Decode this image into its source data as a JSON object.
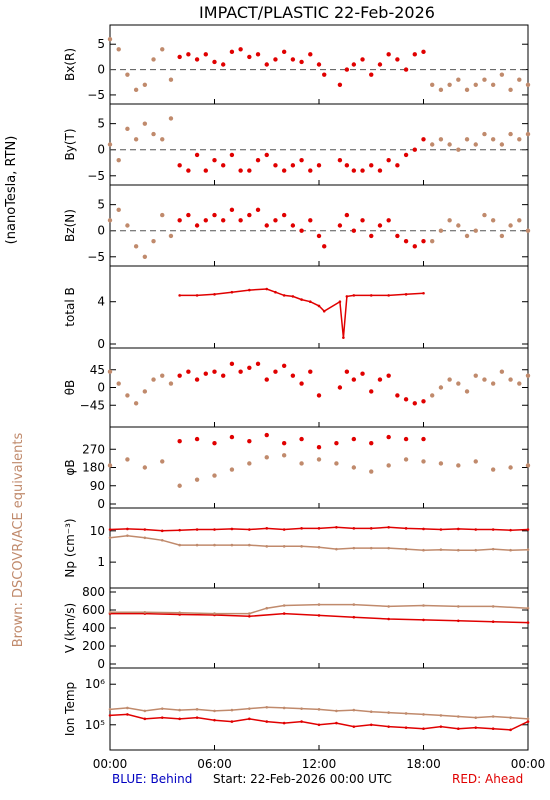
{
  "title": "IMPACT/PLASTIC   22-Feb-2026",
  "left_units_label": "(nanoTesla, RTN)",
  "left_brown_label": "Brown: DSCOVR/ACE equivalents",
  "footer": {
    "blue": "BLUE: Behind",
    "start": "Start: 22-Feb-2026 00:00 UTC",
    "red": "RED: Ahead"
  },
  "colors": {
    "red": "#e00000",
    "brown": "#c08a6c",
    "blue": "#0000c0",
    "dashed": "#555555"
  },
  "chart_data": [
    {
      "type": "scatter",
      "id": "bx",
      "ylabel": "Bx(R)",
      "ylim": [
        -6,
        8
      ],
      "ytick_labels": [
        "−5",
        "0",
        "5"
      ],
      "ytick_values": [
        -5,
        0,
        5
      ],
      "zero_line": true,
      "series": [
        {
          "color_key": "red",
          "x": [
            4,
            4.5,
            5,
            5.5,
            6,
            6.5,
            7,
            7.5,
            8,
            8.5,
            9,
            9.5,
            10,
            10.5,
            11,
            11.5,
            12,
            12.3,
            13.2,
            13.6,
            14,
            14.5,
            15,
            15.5,
            16,
            16.5,
            17,
            17.5,
            18
          ],
          "y": [
            2.5,
            3,
            2,
            3,
            1.5,
            1,
            3.5,
            4,
            2.5,
            3,
            1,
            2,
            3.5,
            2,
            1.5,
            3,
            1,
            -1,
            -3,
            0,
            1,
            2,
            -1,
            1,
            3,
            2,
            0,
            3,
            3.5
          ]
        },
        {
          "color_key": "brown",
          "x": [
            0,
            0.5,
            1,
            1.5,
            2,
            2.5,
            3,
            3.5,
            18.5,
            19,
            19.5,
            20,
            20.5,
            21,
            21.5,
            22,
            22.5,
            23,
            23.5,
            24
          ],
          "y": [
            6,
            4,
            -1,
            -4,
            -3,
            2,
            4,
            -2,
            -3,
            -4,
            -3,
            -2,
            -4,
            -3,
            -2,
            -3,
            -1,
            -4,
            -2,
            -3
          ]
        }
      ]
    },
    {
      "type": "scatter",
      "id": "by",
      "ylabel": "By(T)",
      "ylim": [
        -6,
        8
      ],
      "ytick_labels": [
        "−5",
        "0",
        "5"
      ],
      "ytick_values": [
        -5,
        0,
        5
      ],
      "zero_line": true,
      "series": [
        {
          "color_key": "red",
          "x": [
            4,
            4.5,
            5,
            5.5,
            6,
            6.5,
            7,
            7.5,
            8,
            8.5,
            9,
            9.5,
            10,
            10.5,
            11,
            11.5,
            12,
            13.2,
            13.6,
            14,
            14.5,
            15,
            15.5,
            16,
            16.5,
            17,
            17.5,
            18
          ],
          "y": [
            -3,
            -4,
            -1,
            -4,
            -2,
            -3,
            -1,
            -4,
            -4,
            -2,
            -1,
            -3,
            -4,
            -3,
            -2,
            -4,
            -3,
            -2,
            -3,
            -4,
            -4,
            -3,
            -4,
            -2,
            -3,
            -1,
            0,
            2
          ]
        },
        {
          "color_key": "brown",
          "x": [
            0,
            0.5,
            1,
            1.5,
            2,
            2.5,
            3,
            3.5,
            18.5,
            19,
            19.5,
            20,
            20.5,
            21,
            21.5,
            22,
            22.5,
            23,
            23.5,
            24
          ],
          "y": [
            1,
            -2,
            4,
            2,
            5,
            3,
            2,
            6,
            1,
            2,
            1,
            0,
            2,
            1,
            3,
            2,
            1,
            3,
            2,
            3
          ]
        }
      ]
    },
    {
      "type": "scatter",
      "id": "bz",
      "ylabel": "Bz(N)",
      "ylim": [
        -6,
        8
      ],
      "ytick_labels": [
        "−5",
        "0",
        "5"
      ],
      "ytick_values": [
        -5,
        0,
        5
      ],
      "zero_line": true,
      "series": [
        {
          "color_key": "red",
          "x": [
            4,
            4.5,
            5,
            5.5,
            6,
            6.5,
            7,
            7.5,
            8,
            8.5,
            9,
            9.5,
            10,
            10.5,
            11,
            11.5,
            12,
            12.3,
            13.2,
            13.6,
            14,
            14.5,
            15,
            15.5,
            16,
            16.5,
            17,
            17.5,
            18
          ],
          "y": [
            2,
            3,
            1,
            2,
            3,
            2,
            4,
            2,
            3,
            4,
            1,
            2,
            3,
            1,
            0,
            2,
            -1,
            -3,
            1,
            3,
            0,
            2,
            -1,
            1,
            2,
            -1,
            -2,
            -3,
            -2
          ]
        },
        {
          "color_key": "brown",
          "x": [
            0,
            0.5,
            1,
            1.5,
            2,
            2.5,
            3,
            3.5,
            18.5,
            19,
            19.5,
            20,
            20.5,
            21,
            21.5,
            22,
            22.5,
            23,
            23.5,
            24
          ],
          "y": [
            2,
            4,
            1,
            -3,
            -5,
            -2,
            3,
            -1,
            -2,
            0,
            2,
            1,
            -1,
            0,
            3,
            2,
            -1,
            1,
            2,
            0
          ]
        }
      ]
    },
    {
      "type": "line",
      "id": "btot",
      "ylabel": "total B",
      "ylim": [
        0,
        7
      ],
      "ytick_labels": [
        "0",
        "4"
      ],
      "ytick_values": [
        0,
        4
      ],
      "zero_line": false,
      "series": [
        {
          "color_key": "red",
          "x": [
            4,
            5,
            6,
            7,
            8,
            9,
            9.5,
            10,
            10.5,
            11,
            11.5,
            12,
            12.3,
            13.2,
            13.4,
            13.6,
            14,
            15,
            16,
            17,
            18
          ],
          "y": [
            4.6,
            4.6,
            4.7,
            4.9,
            5.1,
            5.2,
            4.9,
            4.6,
            4.5,
            4.2,
            4.0,
            3.6,
            3.1,
            4.0,
            0.6,
            4.5,
            4.6,
            4.6,
            4.6,
            4.7,
            4.8
          ]
        }
      ]
    },
    {
      "type": "scatter",
      "id": "theta",
      "ylabel": "θB",
      "ylim": [
        -90,
        90
      ],
      "ytick_labels": [
        "−45",
        "0",
        "45"
      ],
      "ytick_values": [
        -45,
        0,
        45
      ],
      "zero_line": false,
      "series": [
        {
          "color_key": "red",
          "x": [
            4,
            4.5,
            5,
            5.5,
            6,
            6.5,
            7,
            7.5,
            8,
            8.5,
            9,
            9.5,
            10,
            10.5,
            11,
            11.5,
            12,
            13.2,
            13.6,
            14,
            14.5,
            15,
            15.5,
            16,
            16.5,
            17,
            17.5,
            18
          ],
          "y": [
            30,
            40,
            20,
            35,
            40,
            30,
            60,
            40,
            50,
            60,
            20,
            40,
            55,
            30,
            10,
            40,
            -20,
            0,
            40,
            20,
            35,
            -10,
            20,
            30,
            -20,
            -30,
            -40,
            -35
          ]
        },
        {
          "color_key": "brown",
          "x": [
            0,
            0.5,
            1,
            1.5,
            2,
            2.5,
            3,
            3.5,
            18.5,
            19,
            19.5,
            20,
            20.5,
            21,
            21.5,
            22,
            22.5,
            23,
            23.5,
            24
          ],
          "y": [
            40,
            10,
            -20,
            -40,
            -10,
            20,
            30,
            10,
            -20,
            0,
            20,
            10,
            -10,
            30,
            20,
            10,
            40,
            20,
            10,
            30
          ]
        }
      ]
    },
    {
      "type": "scatter",
      "id": "phi",
      "ylabel": "φB",
      "ylim": [
        0,
        360
      ],
      "ytick_labels": [
        "0",
        "90",
        "180",
        "270"
      ],
      "ytick_values": [
        0,
        90,
        180,
        270
      ],
      "zero_line": false,
      "series": [
        {
          "color_key": "red",
          "x": [
            4,
            5,
            6,
            7,
            8,
            9,
            10,
            11,
            12,
            13,
            14,
            15,
            16,
            17,
            18
          ],
          "y": [
            310,
            320,
            300,
            330,
            310,
            340,
            300,
            320,
            280,
            300,
            320,
            300,
            330,
            320,
            320
          ]
        },
        {
          "color_key": "brown",
          "x": [
            0,
            1,
            2,
            3,
            4,
            5,
            6,
            7,
            8,
            9,
            10,
            11,
            12,
            13,
            14,
            15,
            16,
            17,
            18,
            19,
            20,
            21,
            22,
            23,
            24
          ],
          "y": [
            190,
            220,
            180,
            210,
            90,
            120,
            140,
            170,
            200,
            230,
            240,
            200,
            220,
            200,
            180,
            160,
            190,
            220,
            210,
            200,
            190,
            210,
            170,
            180,
            190
          ]
        }
      ]
    },
    {
      "type": "line",
      "id": "np",
      "ylabel": "Np (cm⁻³)",
      "yscale": "log",
      "ylim": [
        0.2,
        40
      ],
      "ytick_labels": [
        "1",
        "10"
      ],
      "ytick_values": [
        1,
        10
      ],
      "zero_line": false,
      "series": [
        {
          "color_key": "red",
          "x": [
            0,
            1,
            2,
            3,
            4,
            5,
            6,
            7,
            8,
            9,
            10,
            11,
            12,
            13,
            14,
            15,
            16,
            17,
            18,
            19,
            20,
            21,
            22,
            23,
            24
          ],
          "y": [
            11,
            11.5,
            11,
            10,
            10.5,
            11,
            11,
            11.5,
            11,
            12,
            11,
            12,
            12,
            13,
            12,
            12,
            13,
            12,
            11.5,
            11,
            11.5,
            11,
            11,
            10.5,
            11
          ]
        },
        {
          "color_key": "brown",
          "x": [
            0,
            1,
            2,
            3,
            4,
            5,
            6,
            7,
            8,
            9,
            10,
            11,
            12,
            13,
            14,
            15,
            16,
            17,
            18,
            19,
            20,
            21,
            22,
            23,
            24
          ],
          "y": [
            6,
            7,
            6,
            5,
            3.5,
            3.5,
            3.5,
            3.5,
            3.5,
            3.2,
            3.2,
            3.2,
            3,
            2.6,
            2.8,
            2.8,
            2.8,
            2.6,
            2.4,
            2.5,
            2.4,
            2.4,
            2.6,
            2.4,
            2.5
          ]
        }
      ]
    },
    {
      "type": "line",
      "id": "v",
      "ylabel": "V (km/s)",
      "ylim": [
        0,
        800
      ],
      "ytick_labels": [
        "0",
        "200",
        "400",
        "600",
        "800"
      ],
      "ytick_values": [
        0,
        200,
        400,
        600,
        800
      ],
      "zero_line": false,
      "series": [
        {
          "color_key": "red",
          "x": [
            0,
            2,
            4,
            6,
            8,
            10,
            12,
            14,
            16,
            18,
            20,
            22,
            24
          ],
          "y": [
            560,
            560,
            550,
            545,
            530,
            560,
            540,
            520,
            500,
            490,
            480,
            470,
            460
          ]
        },
        {
          "color_key": "brown",
          "x": [
            0,
            2,
            4,
            6,
            8,
            9,
            10,
            12,
            14,
            16,
            18,
            20,
            22,
            24
          ],
          "y": [
            575,
            575,
            570,
            560,
            560,
            620,
            650,
            660,
            660,
            640,
            650,
            640,
            640,
            620
          ]
        }
      ]
    },
    {
      "type": "line",
      "id": "temp",
      "ylabel": "Ion Temp",
      "yscale": "log",
      "ylim": [
        30000,
        2000000
      ],
      "ytick_labels": [
        "10⁵",
        "10⁶"
      ],
      "ytick_values": [
        100000,
        1000000
      ],
      "zero_line": false,
      "series": [
        {
          "color_key": "red",
          "x": [
            0,
            1,
            2,
            3,
            4,
            5,
            6,
            7,
            8,
            9,
            10,
            11,
            12,
            13,
            14,
            15,
            16,
            17,
            18,
            19,
            20,
            21,
            22,
            23,
            24
          ],
          "y": [
            170000,
            180000,
            140000,
            150000,
            140000,
            150000,
            130000,
            120000,
            140000,
            120000,
            110000,
            120000,
            100000,
            110000,
            90000,
            100000,
            90000,
            85000,
            80000,
            90000,
            80000,
            85000,
            80000,
            75000,
            120000
          ]
        },
        {
          "color_key": "brown",
          "x": [
            0,
            1,
            2,
            3,
            4,
            5,
            6,
            7,
            8,
            9,
            10,
            11,
            12,
            13,
            14,
            15,
            16,
            17,
            18,
            19,
            20,
            21,
            22,
            23,
            24
          ],
          "y": [
            240000,
            260000,
            220000,
            250000,
            230000,
            240000,
            220000,
            230000,
            250000,
            270000,
            260000,
            250000,
            240000,
            220000,
            230000,
            210000,
            200000,
            190000,
            180000,
            170000,
            160000,
            150000,
            160000,
            150000,
            140000
          ]
        }
      ]
    }
  ],
  "x_axis": {
    "range_hours": [
      0,
      24
    ],
    "ticks": [
      {
        "value": 0,
        "label": "00:00"
      },
      {
        "value": 6,
        "label": "06:00"
      },
      {
        "value": 12,
        "label": "12:00"
      },
      {
        "value": 18,
        "label": "18:00"
      },
      {
        "value": 24,
        "label": "00:00"
      }
    ]
  }
}
